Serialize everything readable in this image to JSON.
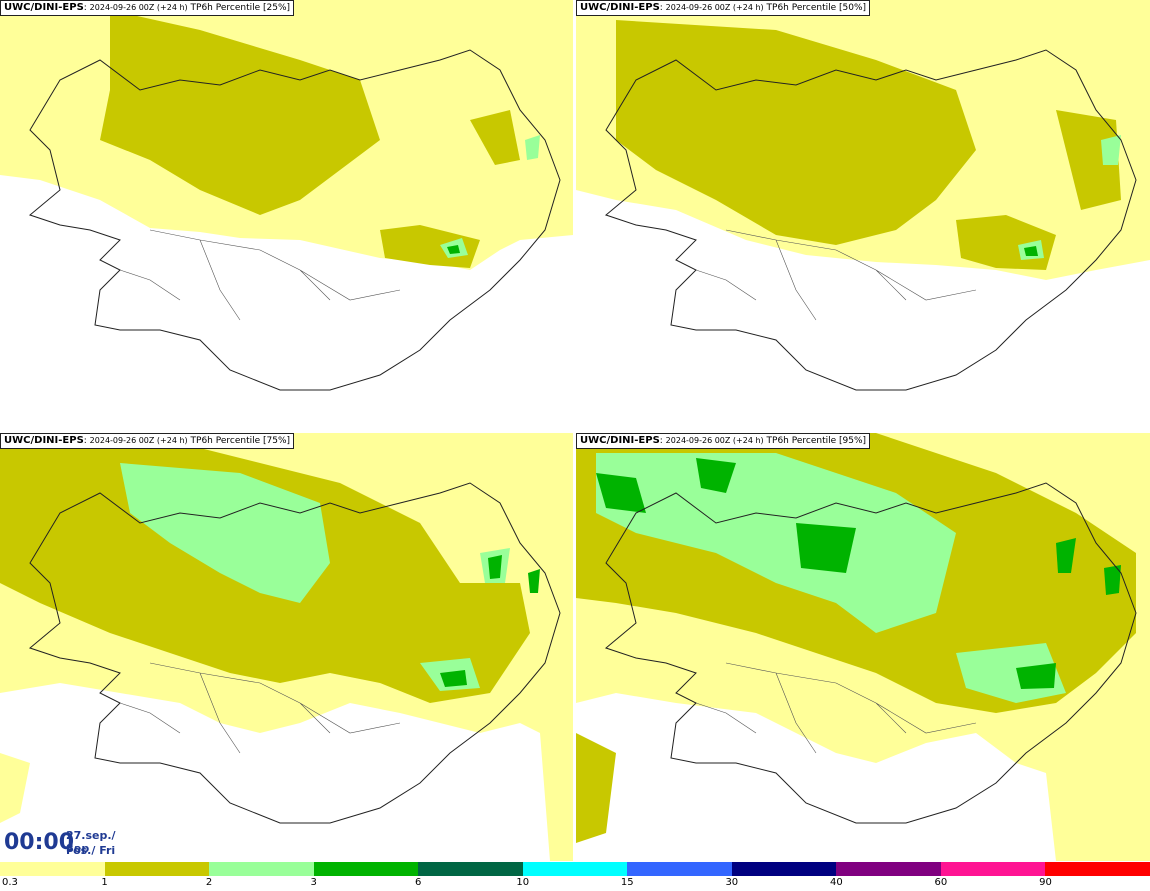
{
  "panels": [
    {
      "model": "UWC/DINI-EPS",
      "run": "2024-09-26 00Z (+24 h)",
      "field": "TP6h Percentile [25%]",
      "percentile": 25
    },
    {
      "model": "UWC/DINI-EPS",
      "run": "2024-09-26 00Z (+24 h)",
      "field": "TP6h Percentile [50%]",
      "percentile": 50
    },
    {
      "model": "UWC/DINI-EPS",
      "run": "2024-09-26 00Z (+24 h)",
      "field": "TP6h Percentile [75%]",
      "percentile": 75
    },
    {
      "model": "UWC/DINI-EPS",
      "run": "2024-09-26 00Z (+24 h)",
      "field": "TP6h Percentile [95%]",
      "percentile": 95
    }
  ],
  "time": {
    "clock": "00:00",
    "date_line1": "27.sep./ Sep",
    "date_line2": "Fös./ Fri"
  },
  "legend": {
    "colors": [
      "#ffff99",
      "#c8c800",
      "#99ff99",
      "#00b300",
      "#006644",
      "#00ffff",
      "#3366ff",
      "#000080",
      "#800080",
      "#ff1493",
      "#ff0000"
    ],
    "labels": [
      "0.3",
      "1",
      "2",
      "3",
      "6",
      "10",
      "15",
      "30",
      "40",
      "60",
      "90"
    ]
  }
}
